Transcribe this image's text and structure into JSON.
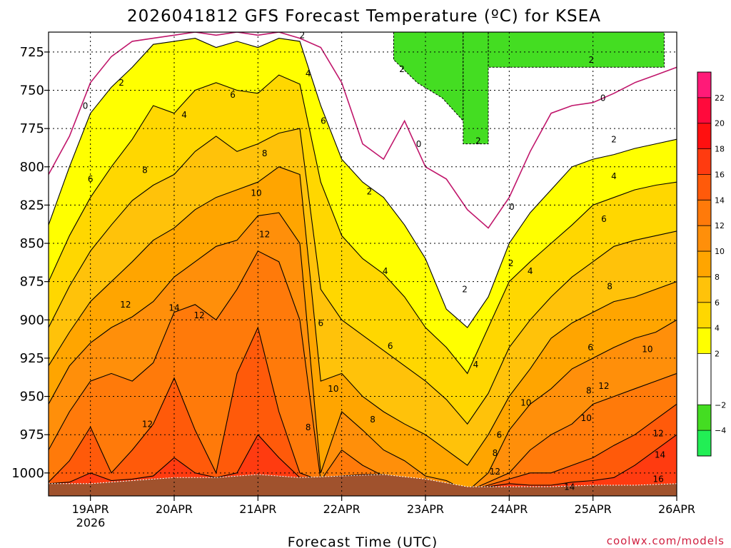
{
  "title": "2026041812 GFS Forecast Temperature (ºC) for KSEA",
  "xlabel": "Forecast Time (UTC)",
  "credit": "coolwx.com/models",
  "year_label": "2026",
  "colors": {
    "ground": "#a0522d",
    "contour_line": "#000000",
    "zero_line": "#c0166b"
  },
  "chart_data": {
    "type": "heatmap",
    "title": "2026041812 GFS Forecast Temperature (ºC) for KSEA",
    "xlabel": "Forecast Time (UTC)",
    "ylabel": "",
    "x_ticks": [
      "19APR",
      "20APR",
      "21APR",
      "22APR",
      "23APR",
      "24APR",
      "25APR",
      "26APR"
    ],
    "x_tick_days": [
      19,
      20,
      21,
      22,
      23,
      24,
      25,
      26
    ],
    "xlim_days": [
      18.5,
      26.0
    ],
    "y_ticks": [
      725,
      750,
      775,
      800,
      825,
      850,
      875,
      900,
      925,
      950,
      975,
      1000
    ],
    "ylim_hpa": [
      1015,
      712
    ],
    "grid": true,
    "colorbar": {
      "ticks": [
        22,
        20,
        18,
        16,
        14,
        12,
        10,
        8,
        6,
        4,
        2,
        -2,
        -4
      ],
      "tick_labels": [
        "22",
        "20",
        "18",
        "16",
        "14",
        "12",
        "10",
        "8",
        "6",
        "4",
        "2",
        "−2",
        "−4"
      ],
      "bands": [
        {
          "from": 22,
          "to": 24,
          "color": "#ff1a78"
        },
        {
          "from": 20,
          "to": 22,
          "color": "#ff0a3c"
        },
        {
          "from": 18,
          "to": 20,
          "color": "#ff1010"
        },
        {
          "from": 16,
          "to": 18,
          "color": "#ff3b10"
        },
        {
          "from": 14,
          "to": 16,
          "color": "#ff5a0a"
        },
        {
          "from": 12,
          "to": 14,
          "color": "#ff7a0a"
        },
        {
          "from": 10,
          "to": 12,
          "color": "#ff8f0a"
        },
        {
          "from": 8,
          "to": 10,
          "color": "#ffa500"
        },
        {
          "from": 6,
          "to": 8,
          "color": "#ffc20a"
        },
        {
          "from": 4,
          "to": 6,
          "color": "#ffd700"
        },
        {
          "from": 2,
          "to": 4,
          "color": "#ffff00"
        },
        {
          "from": -2,
          "to": 2,
          "color": "#ffffff"
        },
        {
          "from": -4,
          "to": -2,
          "color": "#44dd22"
        },
        {
          "from": -6,
          "to": -4,
          "color": "#22ee55"
        }
      ]
    },
    "surface_pressure_hpa": [
      {
        "day": 18.5,
        "p": 1007
      },
      {
        "day": 19.0,
        "p": 1007
      },
      {
        "day": 19.5,
        "p": 1005
      },
      {
        "day": 20.0,
        "p": 1003
      },
      {
        "day": 20.5,
        "p": 1003
      },
      {
        "day": 21.0,
        "p": 1001
      },
      {
        "day": 21.5,
        "p": 1003
      },
      {
        "day": 22.0,
        "p": 1002
      },
      {
        "day": 22.5,
        "p": 1001
      },
      {
        "day": 23.0,
        "p": 1004
      },
      {
        "day": 23.5,
        "p": 1009
      },
      {
        "day": 24.0,
        "p": 1009
      },
      {
        "day": 24.5,
        "p": 1009
      },
      {
        "day": 25.0,
        "p": 1008
      },
      {
        "day": 25.5,
        "p": 1008
      },
      {
        "day": 26.0,
        "p": 1007
      }
    ],
    "isotherm_top_hpa": {
      "isotherm_C": [
        0,
        2,
        4,
        6,
        8,
        10,
        12,
        14,
        16
      ],
      "days": [
        18.5,
        18.75,
        19.0,
        19.25,
        19.5,
        19.75,
        20.0,
        20.25,
        20.5,
        20.75,
        21.0,
        21.25,
        21.5,
        21.75,
        22.0,
        22.25,
        22.5,
        22.75,
        23.0,
        23.25,
        23.5,
        23.75,
        24.0,
        24.25,
        24.5,
        24.75,
        25.0,
        25.25,
        25.5,
        25.75,
        26.0
      ],
      "levels": [
        [
          805,
          780,
          745,
          728,
          718,
          716,
          714,
          712,
          714,
          712,
          714,
          712,
          716,
          722,
          745,
          785,
          795,
          770,
          800,
          808,
          828,
          840,
          820,
          790,
          765,
          760,
          758,
          752,
          745,
          740,
          735
        ],
        [
          838,
          800,
          765,
          748,
          735,
          720,
          718,
          716,
          722,
          718,
          722,
          716,
          718,
          760,
          795,
          810,
          820,
          838,
          860,
          893,
          905,
          885,
          850,
          830,
          815,
          800,
          795,
          792,
          788,
          785,
          782
        ],
        [
          875,
          845,
          820,
          800,
          782,
          760,
          765,
          750,
          745,
          750,
          752,
          740,
          746,
          810,
          845,
          860,
          870,
          885,
          905,
          918,
          935,
          905,
          875,
          862,
          850,
          838,
          825,
          820,
          815,
          812,
          810
        ],
        [
          905,
          878,
          855,
          838,
          822,
          812,
          805,
          790,
          780,
          790,
          785,
          778,
          775,
          880,
          900,
          910,
          920,
          930,
          940,
          952,
          968,
          948,
          918,
          900,
          885,
          872,
          862,
          852,
          848,
          845,
          842
        ],
        [
          930,
          908,
          888,
          875,
          862,
          848,
          840,
          828,
          820,
          815,
          810,
          800,
          805,
          940,
          935,
          950,
          960,
          968,
          975,
          985,
          995,
          975,
          950,
          932,
          912,
          902,
          895,
          888,
          885,
          880,
          875
        ],
        [
          955,
          930,
          915,
          905,
          898,
          888,
          872,
          862,
          852,
          848,
          832,
          830,
          850,
          1000,
          960,
          972,
          985,
          992,
          1002,
          1005,
          1012,
          1000,
          972,
          955,
          945,
          932,
          925,
          918,
          912,
          908,
          900
        ],
        [
          985,
          960,
          940,
          935,
          940,
          928,
          895,
          890,
          900,
          880,
          855,
          862,
          900,
          1005,
          985,
          995,
          1002,
          1005,
          1008,
          1010,
          1012,
          1006,
          1000,
          985,
          975,
          968,
          955,
          950,
          945,
          940,
          935
        ],
        [
          1006,
          992,
          970,
          1000,
          985,
          968,
          938,
          972,
          1000,
          935,
          905,
          960,
          1000,
          1005,
          1002,
          1002,
          1002,
          1004,
          1006,
          1009,
          1012,
          1008,
          1004,
          1000,
          1000,
          995,
          990,
          982,
          975,
          965,
          955
        ],
        [
          1007,
          1006,
          1000,
          1005,
          1004,
          1002,
          990,
          1000,
          1003,
          1000,
          975,
          990,
          1003,
          1003,
          1002,
          1001,
          1001,
          1003,
          1006,
          1009,
          1012,
          1009,
          1007,
          1008,
          1008,
          1006,
          1005,
          1003,
          995,
          985,
          975
        ]
      ]
    },
    "minus2_regions": [
      {
        "day_start": 22.62,
        "day_end": 23.45,
        "p_bottom_top": [
          [
            22.62,
            730
          ],
          [
            22.9,
            745
          ],
          [
            23.2,
            755
          ],
          [
            23.45,
            770
          ]
        ]
      },
      {
        "day_start": 23.45,
        "day_end": 23.75,
        "p_bottom": 785
      },
      {
        "day_start": 23.75,
        "day_end": 25.85,
        "p_bottom": 735
      }
    ],
    "contour_labels": [
      {
        "v": "0",
        "day": 18.94,
        "p": 762
      },
      {
        "v": "2",
        "day": 19.37,
        "p": 747
      },
      {
        "v": "4",
        "day": 20.12,
        "p": 768
      },
      {
        "v": "6",
        "day": 20.7,
        "p": 755
      },
      {
        "v": "8",
        "day": 21.08,
        "p": 793
      },
      {
        "v": "10",
        "day": 20.98,
        "p": 819
      },
      {
        "v": "12",
        "day": 21.08,
        "p": 846
      },
      {
        "v": "14",
        "day": 20.0,
        "p": 894
      },
      {
        "v": "12",
        "day": 19.42,
        "p": 892
      },
      {
        "v": "12",
        "day": 20.3,
        "p": 899
      },
      {
        "v": "6",
        "day": 19.0,
        "p": 810
      },
      {
        "v": "8",
        "day": 19.65,
        "p": 804
      },
      {
        "v": "12",
        "day": 19.68,
        "p": 970
      },
      {
        "v": "2",
        "day": 21.53,
        "p": 716
      },
      {
        "v": "4",
        "day": 21.6,
        "p": 741
      },
      {
        "v": "6",
        "day": 21.78,
        "p": 772
      },
      {
        "v": "6",
        "day": 21.75,
        "p": 904
      },
      {
        "v": "2",
        "day": 22.33,
        "p": 818
      },
      {
        "v": "4",
        "day": 22.52,
        "p": 870
      },
      {
        "v": "6",
        "day": 22.58,
        "p": 919
      },
      {
        "v": "8",
        "day": 21.6,
        "p": 972
      },
      {
        "v": "10",
        "day": 21.9,
        "p": 947
      },
      {
        "v": "8",
        "day": 22.37,
        "p": 967
      },
      {
        "v": "2",
        "day": 22.72,
        "p": 738
      },
      {
        "v": "0",
        "day": 22.92,
        "p": 787
      },
      {
        "v": "2",
        "day": 23.47,
        "p": 882
      },
      {
        "v": "4",
        "day": 23.6,
        "p": 931
      },
      {
        "v": "2",
        "day": 23.63,
        "p": 785
      },
      {
        "v": "0",
        "day": 24.03,
        "p": 828
      },
      {
        "v": "2",
        "day": 24.02,
        "p": 865
      },
      {
        "v": "4",
        "day": 24.25,
        "p": 870
      },
      {
        "v": "6",
        "day": 23.88,
        "p": 977
      },
      {
        "v": "8",
        "day": 23.83,
        "p": 989
      },
      {
        "v": "12",
        "day": 23.83,
        "p": 1001
      },
      {
        "v": "10",
        "day": 24.2,
        "p": 956
      },
      {
        "v": "14",
        "day": 24.72,
        "p": 1011
      },
      {
        "v": "6",
        "day": 24.97,
        "p": 920
      },
      {
        "v": "8",
        "day": 24.95,
        "p": 948
      },
      {
        "v": "10",
        "day": 24.92,
        "p": 966
      },
      {
        "v": "12",
        "day": 25.13,
        "p": 945
      },
      {
        "v": "8",
        "day": 25.2,
        "p": 880
      },
      {
        "v": "6",
        "day": 25.13,
        "p": 836
      },
      {
        "v": "4",
        "day": 25.25,
        "p": 808
      },
      {
        "v": "2",
        "day": 25.25,
        "p": 784
      },
      {
        "v": "0",
        "day": 25.12,
        "p": 757
      },
      {
        "v": "2",
        "day": 24.98,
        "p": 732
      },
      {
        "v": "10",
        "day": 25.65,
        "p": 921
      },
      {
        "v": "12",
        "day": 25.78,
        "p": 976
      },
      {
        "v": "14",
        "day": 25.8,
        "p": 990
      },
      {
        "v": "16",
        "day": 25.78,
        "p": 1006
      }
    ]
  }
}
